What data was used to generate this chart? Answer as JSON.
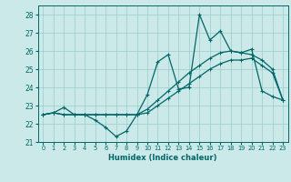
{
  "xlabel": "Humidex (Indice chaleur)",
  "xlim": [
    -0.5,
    23.5
  ],
  "ylim": [
    21.0,
    28.5
  ],
  "yticks": [
    21,
    22,
    23,
    24,
    25,
    26,
    27,
    28
  ],
  "xticks": [
    0,
    1,
    2,
    3,
    4,
    5,
    6,
    7,
    8,
    9,
    10,
    11,
    12,
    13,
    14,
    15,
    16,
    17,
    18,
    19,
    20,
    21,
    22,
    23
  ],
  "bg_color": "#cce9e9",
  "grid_color": "#99cccc",
  "line_color": "#006666",
  "line1_x": [
    0,
    1,
    2,
    3,
    4,
    5,
    6,
    7,
    8,
    9,
    10,
    11,
    12,
    13,
    14,
    15,
    16,
    17,
    18,
    19,
    20,
    21,
    22,
    23
  ],
  "line1_y": [
    22.5,
    22.6,
    22.9,
    22.5,
    22.5,
    22.2,
    21.8,
    21.3,
    21.6,
    22.5,
    23.6,
    25.4,
    25.8,
    23.9,
    24.0,
    28.0,
    26.6,
    27.1,
    26.0,
    25.9,
    26.1,
    23.8,
    23.5,
    23.3
  ],
  "line2_x": [
    0,
    1,
    2,
    3,
    4,
    5,
    6,
    7,
    8,
    9,
    10,
    11,
    12,
    13,
    14,
    15,
    16,
    17,
    18,
    19,
    20,
    21,
    22,
    23
  ],
  "line2_y": [
    22.5,
    22.6,
    22.5,
    22.5,
    22.5,
    22.5,
    22.5,
    22.5,
    22.5,
    22.5,
    22.8,
    23.3,
    23.8,
    24.3,
    24.8,
    25.2,
    25.6,
    25.9,
    26.0,
    25.9,
    25.8,
    25.5,
    25.0,
    23.3
  ],
  "line3_x": [
    0,
    1,
    2,
    3,
    4,
    5,
    6,
    7,
    8,
    9,
    10,
    11,
    12,
    13,
    14,
    15,
    16,
    17,
    18,
    19,
    20,
    21,
    22,
    23
  ],
  "line3_y": [
    22.5,
    22.6,
    22.5,
    22.5,
    22.5,
    22.5,
    22.5,
    22.5,
    22.5,
    22.5,
    22.6,
    23.0,
    23.4,
    23.8,
    24.2,
    24.6,
    25.0,
    25.3,
    25.5,
    25.5,
    25.6,
    25.2,
    24.8,
    23.3
  ]
}
